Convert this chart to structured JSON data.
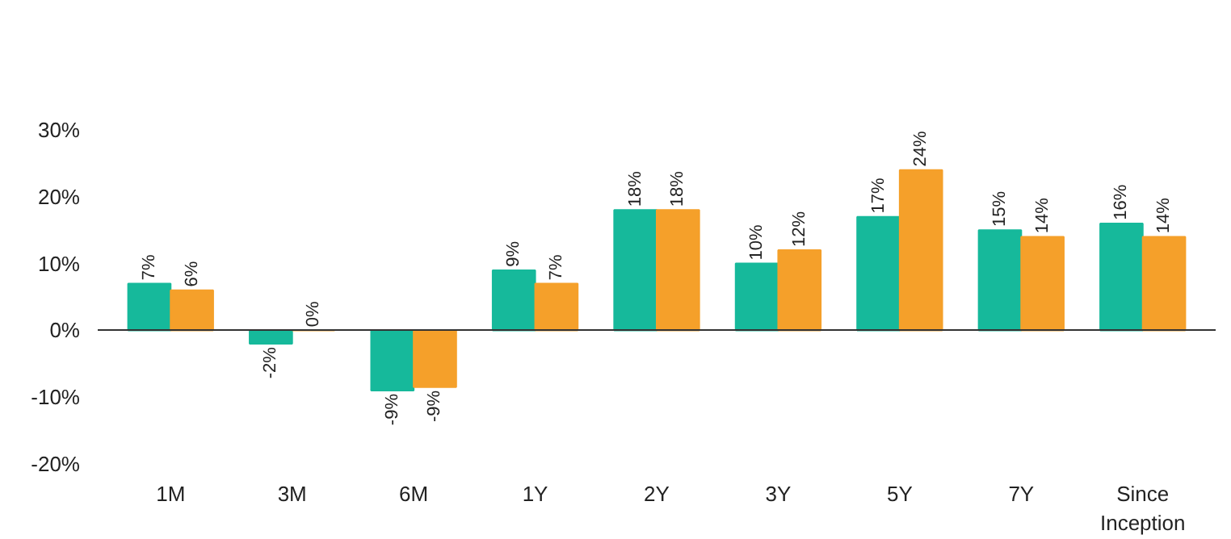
{
  "chart_data": {
    "type": "bar",
    "categories": [
      "1M",
      "3M",
      "6M",
      "1Y",
      "2Y",
      "3Y",
      "5Y",
      "7Y",
      "Since Inception"
    ],
    "series": [
      {
        "color": "#16b99b",
        "values": [
          7,
          -2,
          -9,
          9,
          18,
          10,
          17,
          15,
          16
        ],
        "value_labels": [
          "7%",
          "-2%",
          "-9%",
          "9%",
          "18%",
          "10%",
          "17%",
          "15%",
          "16%"
        ]
      },
      {
        "color": "#f5a02a",
        "values": [
          6,
          0,
          -8.5,
          7,
          18,
          12,
          24,
          14,
          14
        ],
        "value_labels": [
          "6%",
          "0%",
          "-9%",
          "7%",
          "18%",
          "12%",
          "24%",
          "14%",
          "14%"
        ]
      }
    ],
    "ylim": [
      -20,
      30
    ],
    "yticks": [
      {
        "value": -20,
        "label": "-20%"
      },
      {
        "value": -10,
        "label": "-10%"
      },
      {
        "value": 0,
        "label": "0%"
      },
      {
        "value": 10,
        "label": "10%"
      },
      {
        "value": 20,
        "label": "20%"
      },
      {
        "value": 30,
        "label": "30%"
      }
    ]
  }
}
